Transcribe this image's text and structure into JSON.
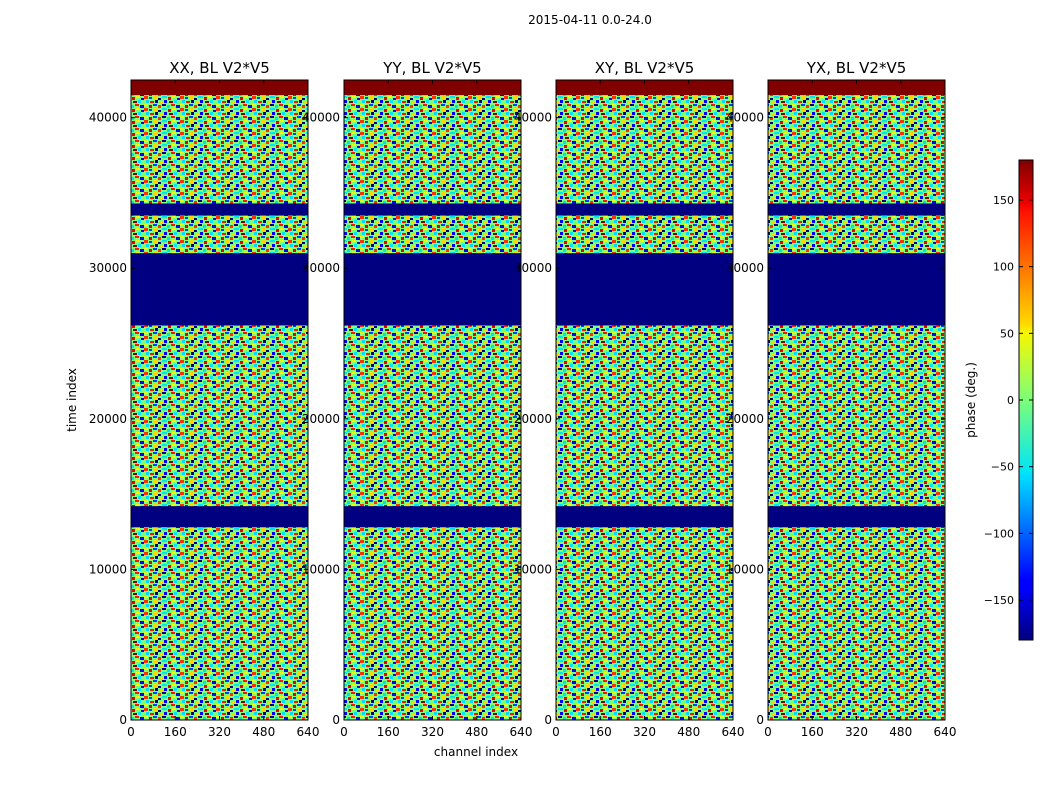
{
  "figure": {
    "suptitle": "2015-04-11 0.0-24.0"
  },
  "chart_data": {
    "type": "heatmap",
    "colormap": "jet",
    "xlabel": "channel index",
    "ylabel": "time index",
    "xlim": [
      0,
      640
    ],
    "ylim": [
      0,
      42500
    ],
    "x_ticks": [
      0,
      160,
      320,
      480,
      640
    ],
    "y_ticks": [
      0,
      10000,
      20000,
      30000,
      40000
    ],
    "panels": [
      {
        "title": "XX, BL V2*V5",
        "polarization": "XX"
      },
      {
        "title": "YY, BL V2*V5",
        "polarization": "YY"
      },
      {
        "title": "XY, BL V2*V5",
        "polarization": "XY"
      },
      {
        "title": "YX, BL V2*V5",
        "polarization": "YX"
      }
    ],
    "flagged_bands": [
      {
        "t0": 41500,
        "t1": 42500,
        "value": 180
      },
      {
        "t0": 33500,
        "t1": 34300,
        "value": -180
      },
      {
        "t0": 26200,
        "t1": 31000,
        "value": -180
      },
      {
        "t0": 12800,
        "t1": 14200,
        "value": -180
      }
    ],
    "colorbar": {
      "label": "phase (deg.)",
      "range": [
        -180,
        180
      ],
      "ticks": [
        -150,
        -100,
        -50,
        0,
        50,
        100,
        150
      ],
      "tick_labels": [
        "−150",
        "−100",
        "−50",
        "0",
        "50",
        "100",
        "150"
      ]
    }
  }
}
